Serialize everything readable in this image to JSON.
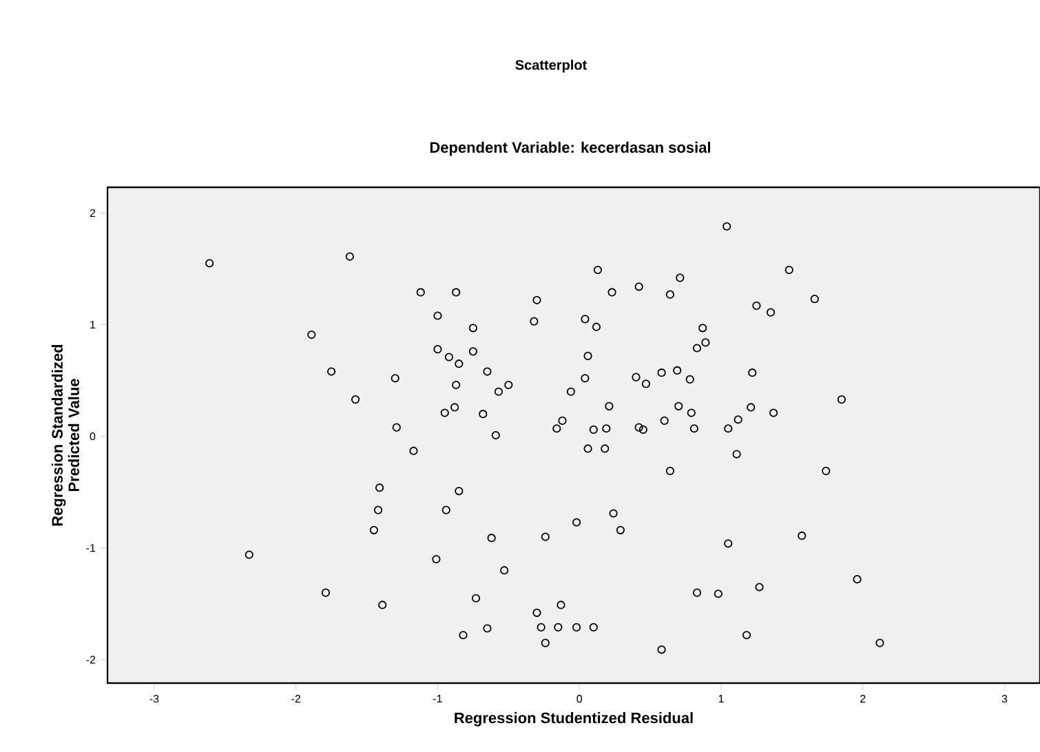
{
  "chart_data": {
    "type": "scatter",
    "title": "Scatterplot",
    "subtitle": "Dependent Variable: kecerdasan sosial",
    "xlabel": "Regression Studentized Residual",
    "ylabel": "Regression Standardized Predicted Value",
    "xlim": [
      -3.33,
      3.25
    ],
    "ylim": [
      -2.21,
      2.23
    ],
    "xticks": [
      -3,
      -2,
      -1,
      0,
      1,
      2,
      3
    ],
    "yticks": [
      -2,
      -1,
      0,
      1,
      2
    ],
    "grid": false,
    "marker": "circle",
    "series": [
      {
        "color": "#000000",
        "x": [
          -2.61,
          -1.62,
          -1.12,
          -0.87,
          -0.3,
          -1.89,
          -1.0,
          -0.75,
          -0.32,
          -1.75,
          -1.0,
          -0.92,
          -0.85,
          -0.75,
          -0.65,
          -0.5,
          -0.57,
          -0.87,
          -1.3,
          -1.58,
          -0.88,
          -0.95,
          -0.68,
          -1.29,
          -0.59,
          -0.16,
          -0.12,
          -1.17,
          1.04,
          0.13,
          1.48,
          0.23,
          0.42,
          0.71,
          0.64,
          1.66,
          1.25,
          1.35,
          0.04,
          0.12,
          0.87,
          0.89,
          0.83,
          0.06,
          0.04,
          0.4,
          0.47,
          0.58,
          0.69,
          0.78,
          1.22,
          -0.06,
          0.21,
          0.7,
          0.79,
          0.6,
          1.85,
          1.21,
          1.12,
          1.37,
          0.1,
          0.19,
          0.42,
          0.45,
          0.81,
          1.05,
          0.06,
          0.18,
          1.11,
          0.64,
          1.74,
          0.24,
          -0.02,
          0.29,
          -0.24,
          1.05,
          1.57,
          1.96,
          0.83,
          0.98,
          1.27,
          -0.13,
          -0.15,
          -0.02,
          0.1,
          1.18,
          0.58,
          2.12,
          -1.41,
          -0.85,
          -1.42,
          -0.94,
          -1.45,
          -0.62,
          -2.33,
          -1.01,
          -0.53,
          -1.79,
          -1.39,
          -0.73,
          -0.3,
          -0.65,
          -0.27,
          -0.82,
          -0.24
        ],
        "values": [
          1.55,
          1.61,
          1.29,
          1.29,
          1.22,
          0.91,
          1.08,
          0.97,
          1.03,
          0.58,
          0.78,
          0.71,
          0.65,
          0.76,
          0.58,
          0.46,
          0.4,
          0.46,
          0.52,
          0.33,
          0.26,
          0.21,
          0.2,
          0.08,
          0.01,
          0.07,
          0.14,
          -0.13,
          1.88,
          1.49,
          1.49,
          1.29,
          1.34,
          1.42,
          1.27,
          1.23,
          1.17,
          1.11,
          1.05,
          0.98,
          0.97,
          0.84,
          0.79,
          0.72,
          0.52,
          0.53,
          0.47,
          0.57,
          0.59,
          0.51,
          0.57,
          0.4,
          0.27,
          0.27,
          0.21,
          0.14,
          0.33,
          0.26,
          0.15,
          0.21,
          0.06,
          0.07,
          0.08,
          0.06,
          0.07,
          0.07,
          -0.11,
          -0.11,
          -0.16,
          -0.31,
          -0.31,
          -0.69,
          -0.77,
          -0.84,
          -0.9,
          -0.96,
          -0.89,
          -1.28,
          -1.4,
          -1.41,
          -1.35,
          -1.51,
          -1.71,
          -1.71,
          -1.71,
          -1.78,
          -1.91,
          -1.85,
          -0.46,
          -0.49,
          -0.66,
          -0.66,
          -0.84,
          -0.91,
          -1.06,
          -1.1,
          -1.2,
          -1.4,
          -1.51,
          -1.45,
          -1.58,
          -1.72,
          -1.71,
          -1.78,
          -1.85
        ]
      }
    ]
  }
}
